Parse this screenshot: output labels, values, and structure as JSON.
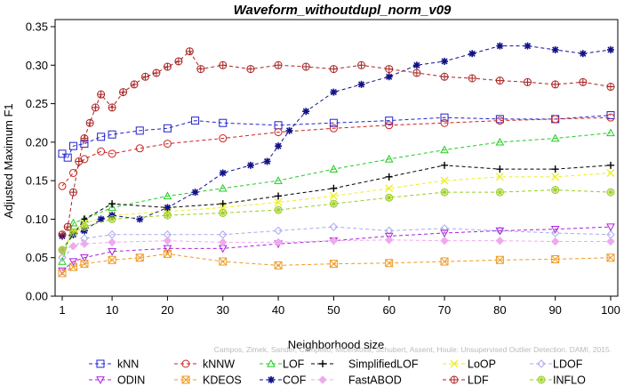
{
  "chart_data": {
    "type": "line",
    "title": "Waveform_withoutdupl_norm_v09",
    "xlabel": "Neighborhood size",
    "ylabel": "Adjusted Maximum F1",
    "xlim": [
      1,
      100
    ],
    "ylim": [
      0,
      0.35
    ],
    "xticks": [
      1,
      10,
      20,
      30,
      40,
      50,
      60,
      70,
      80,
      90,
      100
    ],
    "yticks": [
      0.0,
      0.05,
      0.1,
      0.15,
      0.2,
      0.25,
      0.3,
      0.35
    ],
    "ytick_labels": [
      "0.00",
      "0.05",
      "0.10",
      "0.15",
      "0.20",
      "0.25",
      "0.30",
      "0.35"
    ],
    "grid": false,
    "legend_position": "bottom",
    "watermark": "Campos, Zimek, Sander, Campello, Micenkova, Schubert, Assent, Houle: Unsupervised Outlier Detection. DAMI, 2015.",
    "series": [
      {
        "name": "kNN",
        "color": "#2222cc",
        "marker": "square",
        "dashed": true,
        "x": [
          1,
          2,
          3,
          5,
          8,
          10,
          15,
          20,
          25,
          30,
          40,
          50,
          60,
          70,
          80,
          90,
          100
        ],
        "y": [
          0.185,
          0.18,
          0.195,
          0.198,
          0.207,
          0.21,
          0.215,
          0.218,
          0.228,
          0.225,
          0.222,
          0.225,
          0.228,
          0.232,
          0.23,
          0.23,
          0.235
        ]
      },
      {
        "name": "kNNW",
        "color": "#cc2222",
        "marker": "circle",
        "dashed": true,
        "x": [
          1,
          3,
          5,
          8,
          10,
          15,
          20,
          30,
          40,
          50,
          60,
          70,
          80,
          90,
          100
        ],
        "y": [
          0.143,
          0.16,
          0.178,
          0.188,
          0.185,
          0.192,
          0.198,
          0.205,
          0.213,
          0.218,
          0.222,
          0.225,
          0.228,
          0.23,
          0.232
        ]
      },
      {
        "name": "LOF",
        "color": "#22cc22",
        "marker": "triangle",
        "dashed": true,
        "x": [
          1,
          3,
          5,
          10,
          20,
          30,
          40,
          50,
          60,
          70,
          80,
          90,
          100
        ],
        "y": [
          0.045,
          0.095,
          0.1,
          0.115,
          0.13,
          0.14,
          0.15,
          0.165,
          0.178,
          0.19,
          0.2,
          0.205,
          0.212
        ]
      },
      {
        "name": "SimplifiedLOF",
        "color": "#000000",
        "marker": "plus",
        "dashed": true,
        "x": [
          1,
          3,
          5,
          10,
          20,
          30,
          40,
          50,
          60,
          70,
          80,
          90,
          100
        ],
        "y": [
          0.06,
          0.08,
          0.1,
          0.12,
          0.115,
          0.12,
          0.13,
          0.14,
          0.155,
          0.17,
          0.165,
          0.165,
          0.17
        ]
      },
      {
        "name": "LoOP",
        "color": "#eeee22",
        "marker": "x",
        "dashed": true,
        "x": [
          1,
          3,
          5,
          10,
          20,
          30,
          40,
          50,
          60,
          70,
          80,
          90,
          100
        ],
        "y": [
          0.055,
          0.085,
          0.095,
          0.105,
          0.11,
          0.115,
          0.122,
          0.13,
          0.14,
          0.15,
          0.155,
          0.155,
          0.16
        ]
      },
      {
        "name": "LDOF",
        "color": "#aaaaee",
        "marker": "diamond",
        "dashed": true,
        "x": [
          1,
          5,
          10,
          20,
          30,
          40,
          50,
          60,
          70,
          80,
          90,
          100
        ],
        "y": [
          0.05,
          0.075,
          0.08,
          0.08,
          0.08,
          0.085,
          0.09,
          0.085,
          0.088,
          0.085,
          0.082,
          0.08
        ]
      },
      {
        "name": "ODIN",
        "color": "#aa22dd",
        "marker": "triangle-down",
        "dashed": true,
        "x": [
          1,
          3,
          5,
          10,
          20,
          30,
          40,
          50,
          60,
          70,
          80,
          90,
          100
        ],
        "y": [
          0.033,
          0.045,
          0.05,
          0.058,
          0.062,
          0.062,
          0.068,
          0.072,
          0.078,
          0.082,
          0.085,
          0.087,
          0.09
        ]
      },
      {
        "name": "KDEOS",
        "color": "#ee9922",
        "marker": "square-x",
        "dashed": true,
        "x": [
          1,
          3,
          5,
          10,
          15,
          20,
          30,
          40,
          50,
          60,
          70,
          80,
          90,
          100
        ],
        "y": [
          0.03,
          0.038,
          0.042,
          0.047,
          0.05,
          0.055,
          0.045,
          0.04,
          0.042,
          0.043,
          0.045,
          0.047,
          0.048,
          0.05
        ]
      },
      {
        "name": "COF",
        "color": "#111188",
        "marker": "star",
        "dashed": true,
        "x": [
          1,
          3,
          5,
          8,
          10,
          15,
          20,
          25,
          30,
          35,
          38,
          40,
          42,
          45,
          50,
          55,
          60,
          65,
          70,
          75,
          80,
          85,
          90,
          95,
          100
        ],
        "y": [
          0.078,
          0.08,
          0.085,
          0.1,
          0.105,
          0.1,
          0.115,
          0.135,
          0.16,
          0.17,
          0.175,
          0.195,
          0.215,
          0.24,
          0.265,
          0.275,
          0.285,
          0.3,
          0.305,
          0.315,
          0.325,
          0.325,
          0.32,
          0.315,
          0.32
        ]
      },
      {
        "name": "FastABOD",
        "color": "#eeaaee",
        "marker": "diamond-filled",
        "dashed": true,
        "x": [
          1,
          3,
          5,
          10,
          20,
          30,
          40,
          50,
          60,
          70,
          80,
          90,
          100
        ],
        "y": [
          0.06,
          0.065,
          0.068,
          0.07,
          0.072,
          0.07,
          0.07,
          0.072,
          0.073,
          0.072,
          0.072,
          0.071,
          0.071
        ]
      },
      {
        "name": "LDF",
        "color": "#aa2222",
        "marker": "circle-plus",
        "dashed": true,
        "x": [
          1,
          2,
          3,
          4,
          5,
          6,
          7,
          8,
          10,
          12,
          14,
          16,
          18,
          20,
          22,
          24,
          26,
          30,
          35,
          40,
          45,
          50,
          55,
          60,
          65,
          70,
          75,
          80,
          85,
          90,
          95,
          100
        ],
        "y": [
          0.08,
          0.09,
          0.135,
          0.175,
          0.205,
          0.225,
          0.245,
          0.262,
          0.245,
          0.265,
          0.275,
          0.285,
          0.29,
          0.298,
          0.305,
          0.318,
          0.295,
          0.3,
          0.295,
          0.3,
          0.298,
          0.295,
          0.3,
          0.295,
          0.29,
          0.285,
          0.283,
          0.28,
          0.278,
          0.275,
          0.278,
          0.272
        ]
      },
      {
        "name": "INFLO",
        "color": "#99cc22",
        "marker": "star-circle",
        "dashed": true,
        "x": [
          1,
          3,
          5,
          10,
          20,
          30,
          40,
          50,
          60,
          70,
          80,
          90,
          100
        ],
        "y": [
          0.06,
          0.083,
          0.09,
          0.1,
          0.105,
          0.108,
          0.112,
          0.12,
          0.128,
          0.135,
          0.135,
          0.138,
          0.135
        ]
      }
    ]
  }
}
